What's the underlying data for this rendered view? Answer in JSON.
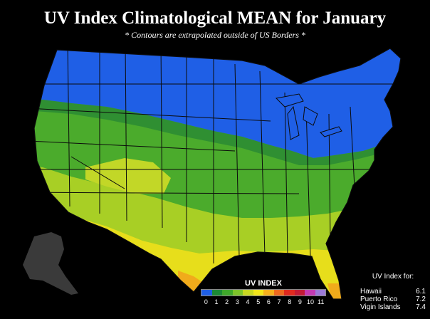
{
  "header": {
    "title": "UV Index Climatological MEAN for January",
    "subtitle": "* Contours are extrapolated outside of US Borders *"
  },
  "legend": {
    "title": "UV INDEX",
    "ticks": [
      "0",
      "1",
      "2",
      "3",
      "4",
      "5",
      "6",
      "7",
      "8",
      "9",
      "10",
      "11"
    ],
    "colors": [
      "#1f5fe6",
      "#1c8a36",
      "#3fa82b",
      "#7dc42a",
      "#c8d821",
      "#f2e61a",
      "#f5b01c",
      "#ee6a1f",
      "#e02a1f",
      "#c21b36",
      "#c33bb3",
      "#9a7ad8"
    ]
  },
  "uv_for": {
    "title": "UV Index for:",
    "locations": [
      {
        "name": "Hawaii",
        "value": "6.1"
      },
      {
        "name": "Puerto Rico",
        "value": "7.2"
      },
      {
        "name": "Vigin Islands",
        "value": "7.4"
      }
    ]
  },
  "map_colors": {
    "blue": "#1f5fe6",
    "green_dark": "#2f8f32",
    "green": "#4bab2c",
    "yellow_green": "#a8cf25",
    "yellow": "#e7de1b",
    "orange": "#f1ab1b",
    "border": "#0b0b0b",
    "alaska": "#3a3a3a"
  }
}
